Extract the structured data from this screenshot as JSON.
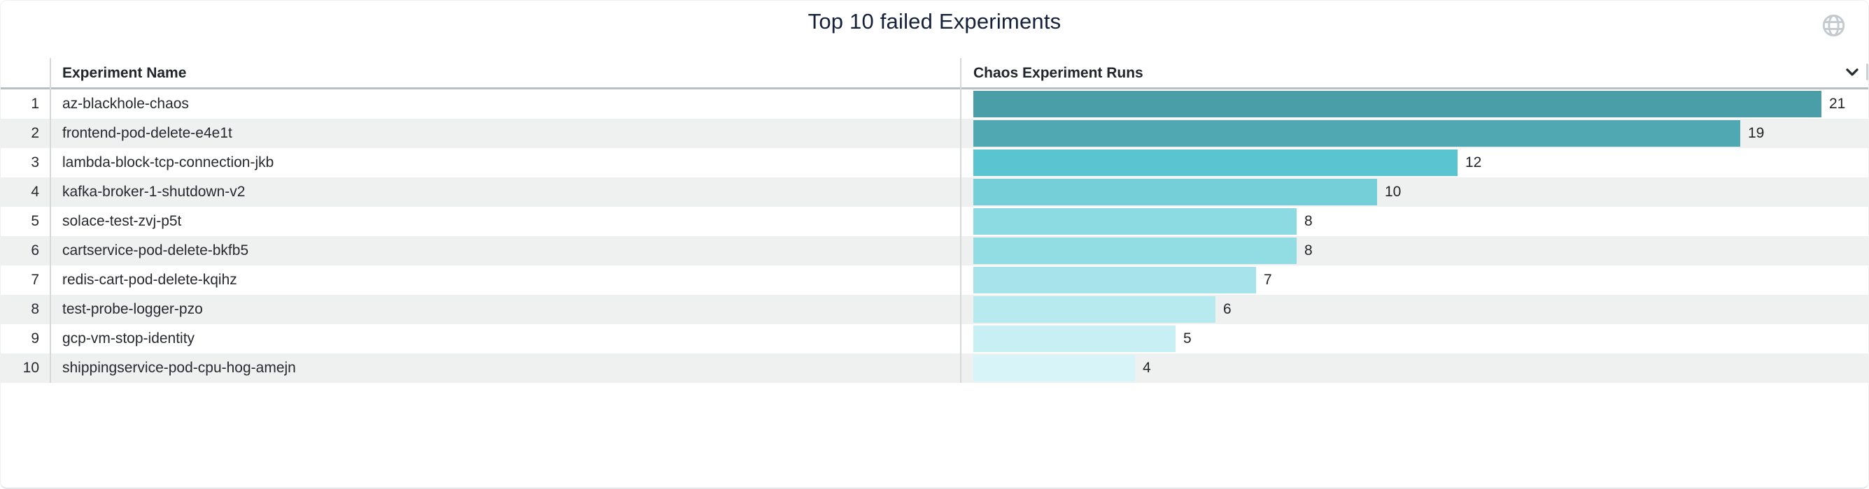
{
  "card": {
    "title": "Top 10 failed Experiments"
  },
  "icons": {
    "globe": "globe-icon",
    "chevron": "chevron-down-icon"
  },
  "table": {
    "columns": [
      {
        "label": "Experiment Name"
      },
      {
        "label": "Chaos Experiment Runs"
      }
    ],
    "rows": [
      {
        "rank": "1",
        "name": "az-blackhole-chaos",
        "runs": 21,
        "bar_color": "#4a9ea8"
      },
      {
        "rank": "2",
        "name": "frontend-pod-delete-e4e1t",
        "runs": 19,
        "bar_color": "#50a9b2"
      },
      {
        "rank": "3",
        "name": "lambda-block-tcp-connection-jkb",
        "runs": 12,
        "bar_color": "#5ac5d1"
      },
      {
        "rank": "4",
        "name": "kafka-broker-1-shutdown-v2",
        "runs": 10,
        "bar_color": "#74cfd9"
      },
      {
        "rank": "5",
        "name": "solace-test-zvj-p5t",
        "runs": 8,
        "bar_color": "#8cdae2"
      },
      {
        "rank": "6",
        "name": "cartservice-pod-delete-bkfb5",
        "runs": 8,
        "bar_color": "#92dce4"
      },
      {
        "rank": "7",
        "name": "redis-cart-pod-delete-kqihz",
        "runs": 7,
        "bar_color": "#a6e3ea"
      },
      {
        "rank": "8",
        "name": "test-probe-logger-pzo",
        "runs": 6,
        "bar_color": "#b7eaef"
      },
      {
        "rank": "9",
        "name": "gcp-vm-stop-identity",
        "runs": 5,
        "bar_color": "#c8f0f4"
      },
      {
        "rank": "10",
        "name": "shippingservice-pod-cpu-hog-amejn",
        "runs": 4,
        "bar_color": "#d7f5f8"
      }
    ]
  },
  "chart_data": {
    "type": "bar",
    "orientation": "horizontal",
    "title": "Top 10 failed Experiments",
    "categories": [
      "az-blackhole-chaos",
      "frontend-pod-delete-e4e1t",
      "lambda-block-tcp-connection-jkb",
      "kafka-broker-1-shutdown-v2",
      "solace-test-zvj-p5t",
      "cartservice-pod-delete-bkfb5",
      "redis-cart-pod-delete-kqihz",
      "test-probe-logger-pzo",
      "gcp-vm-stop-identity",
      "shippingservice-pod-cpu-hog-amejn"
    ],
    "values": [
      21,
      19,
      12,
      10,
      8,
      8,
      7,
      6,
      5,
      4
    ],
    "xlabel": "Chaos Experiment Runs",
    "ylabel": "Experiment Name",
    "xlim": [
      0,
      21
    ],
    "value_labels": true,
    "grid": false,
    "legend": false,
    "bar_colors": [
      "#4a9ea8",
      "#50a9b2",
      "#5ac5d1",
      "#74cfd9",
      "#8cdae2",
      "#92dce4",
      "#a6e3ea",
      "#b7eaef",
      "#c8f0f4",
      "#d7f5f8"
    ]
  },
  "colors": {
    "stripe": "#eff1f1",
    "header_underline": "#b9bec0",
    "column_separator": "#d6d9da",
    "title_text": "#15203a",
    "body_text": "#26292e",
    "icon_gray": "#c5cad0"
  }
}
